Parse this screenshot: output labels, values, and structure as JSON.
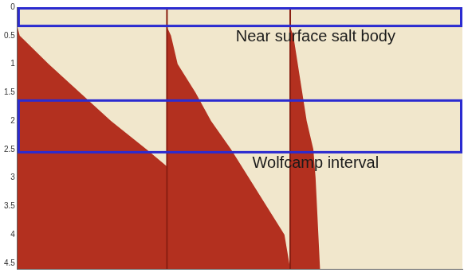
{
  "chart_data": {
    "type": "area",
    "tick_labels": "y",
    "grid": false,
    "xlim": [
      0,
      100
    ],
    "ylim": [
      0,
      4.6
    ],
    "yticks": [
      0,
      0.5,
      1,
      1.5,
      2,
      2.5,
      3,
      3.5,
      4,
      4.5
    ],
    "panel_edges": [
      33.6,
      61.3
    ],
    "series": [
      {
        "color": "#b3301f",
        "x": [
          0,
          0,
          0.5,
          7,
          14,
          21,
          29,
          33.6,
          33.6,
          0
        ],
        "values": [
          4.6,
          0.35,
          0.5,
          1,
          1.5,
          2,
          2.5,
          2.8,
          4.6,
          4.6
        ]
      },
      {
        "color": "#b3301f",
        "x": [
          33.6,
          33.6,
          34.5,
          36,
          40,
          43.5,
          48,
          52,
          56,
          60,
          61.3,
          33.6
        ],
        "values": [
          4.6,
          0.35,
          0.5,
          1,
          1.5,
          2,
          2.5,
          3,
          3.5,
          4,
          4.6,
          4.6
        ]
      },
      {
        "color": "#b3301f",
        "x": [
          61.3,
          61.3,
          62,
          63,
          64,
          65,
          66.5,
          67,
          68,
          61.3
        ],
        "values": [
          4.6,
          0.35,
          0.5,
          1,
          1.5,
          2,
          2.5,
          3,
          4.6,
          4.6
        ]
      }
    ],
    "annotations": [
      {
        "label": "Near surface salt body",
        "x": [
          0,
          100
        ],
        "y": [
          0,
          0.33
        ],
        "color": "#2b2bd0"
      },
      {
        "label": "Wolfcamp interval",
        "x": [
          0,
          100
        ],
        "y": [
          1.62,
          2.55
        ],
        "color": "#2b2bd0"
      }
    ]
  }
}
